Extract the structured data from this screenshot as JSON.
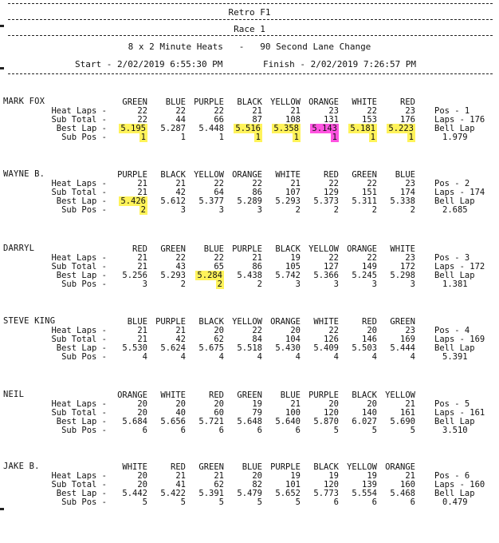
{
  "header": {
    "title": "Retro F1",
    "race": "Race 1",
    "format": "8 x 2 Minute Heats   -   90 Second Lane Change",
    "start": "Start - 2/02/2019 6:55:30 PM",
    "finish": "Finish - 2/02/2019 7:26:57 PM"
  },
  "row_labels": {
    "heat_laps": "Heat Laps -",
    "sub_total": "Sub Total -",
    "best_lap": "Best Lap -",
    "sub_pos": "Sub Pos -"
  },
  "highlight_colors": {
    "yellow": "#fff35a",
    "pink": "#ff53e0"
  },
  "drivers": [
    {
      "name": "MARK FOX",
      "lanes": [
        "GREEN",
        "BLUE",
        "PURPLE",
        "BLACK",
        "YELLOW",
        "ORANGE",
        "WHITE",
        "RED"
      ],
      "heat_laps": [
        "22",
        "22",
        "22",
        "21",
        "21",
        "23",
        "22",
        "23"
      ],
      "sub_total": [
        "22",
        "44",
        "66",
        "87",
        "108",
        "131",
        "153",
        "176"
      ],
      "best_lap": [
        "5.195",
        "5.287",
        "5.448",
        "5.516",
        "5.358",
        "5.143",
        "5.181",
        "5.223"
      ],
      "sub_pos": [
        "1",
        "1",
        "1",
        "1",
        "1",
        "1",
        "1",
        "1"
      ],
      "highlight": [
        "y",
        "",
        "",
        "y",
        "y",
        "p",
        "y",
        "y"
      ],
      "pos": "Pos - 1",
      "laps": "Laps - 176",
      "bell_lap_label": "Bell Lap",
      "bell_lap": "1.979"
    },
    {
      "name": "WAYNE B.",
      "lanes": [
        "PURPLE",
        "BLACK",
        "YELLOW",
        "ORANGE",
        "WHITE",
        "RED",
        "GREEN",
        "BLUE"
      ],
      "heat_laps": [
        "21",
        "21",
        "22",
        "22",
        "21",
        "22",
        "22",
        "23"
      ],
      "sub_total": [
        "21",
        "42",
        "64",
        "86",
        "107",
        "129",
        "151",
        "174"
      ],
      "best_lap": [
        "5.426",
        "5.612",
        "5.377",
        "5.289",
        "5.293",
        "5.373",
        "5.311",
        "5.338"
      ],
      "sub_pos": [
        "2",
        "3",
        "3",
        "3",
        "2",
        "2",
        "2",
        "2"
      ],
      "highlight": [
        "y",
        "",
        "",
        "",
        "",
        "",
        "",
        ""
      ],
      "pos": "Pos - 2",
      "laps": "Laps - 174",
      "bell_lap_label": "Bell Lap",
      "bell_lap": "2.685"
    },
    {
      "name": "DARRYL",
      "lanes": [
        "RED",
        "GREEN",
        "BLUE",
        "PURPLE",
        "BLACK",
        "YELLOW",
        "ORANGE",
        "WHITE"
      ],
      "heat_laps": [
        "21",
        "22",
        "22",
        "21",
        "19",
        "22",
        "22",
        "23"
      ],
      "sub_total": [
        "21",
        "43",
        "65",
        "86",
        "105",
        "127",
        "149",
        "172"
      ],
      "best_lap": [
        "5.256",
        "5.293",
        "5.284",
        "5.438",
        "5.742",
        "5.366",
        "5.245",
        "5.298"
      ],
      "sub_pos": [
        "3",
        "2",
        "2",
        "2",
        "3",
        "3",
        "3",
        "3"
      ],
      "highlight": [
        "",
        "",
        "y",
        "",
        "",
        "",
        "",
        ""
      ],
      "pos": "Pos - 3",
      "laps": "Laps - 172",
      "bell_lap_label": "Bell Lap",
      "bell_lap": "1.381"
    },
    {
      "name": "STEVE KING",
      "lanes": [
        "BLUE",
        "PURPLE",
        "BLACK",
        "YELLOW",
        "ORANGE",
        "WHITE",
        "RED",
        "GREEN"
      ],
      "heat_laps": [
        "21",
        "21",
        "20",
        "22",
        "20",
        "22",
        "20",
        "23"
      ],
      "sub_total": [
        "21",
        "42",
        "62",
        "84",
        "104",
        "126",
        "146",
        "169"
      ],
      "best_lap": [
        "5.530",
        "5.624",
        "5.675",
        "5.518",
        "5.430",
        "5.409",
        "5.503",
        "5.444"
      ],
      "sub_pos": [
        "4",
        "4",
        "4",
        "4",
        "4",
        "4",
        "4",
        "4"
      ],
      "highlight": [
        "",
        "",
        "",
        "",
        "",
        "",
        "",
        ""
      ],
      "pos": "Pos - 4",
      "laps": "Laps - 169",
      "bell_lap_label": "Bell Lap",
      "bell_lap": "5.391"
    },
    {
      "name": "NEIL",
      "lanes": [
        "ORANGE",
        "WHITE",
        "RED",
        "GREEN",
        "BLUE",
        "PURPLE",
        "BLACK",
        "YELLOW"
      ],
      "heat_laps": [
        "20",
        "20",
        "20",
        "19",
        "21",
        "20",
        "20",
        "21"
      ],
      "sub_total": [
        "20",
        "40",
        "60",
        "79",
        "100",
        "120",
        "140",
        "161"
      ],
      "best_lap": [
        "5.684",
        "5.656",
        "5.721",
        "5.648",
        "5.640",
        "5.870",
        "6.027",
        "5.690"
      ],
      "sub_pos": [
        "6",
        "6",
        "6",
        "6",
        "6",
        "5",
        "5",
        "5"
      ],
      "highlight": [
        "",
        "",
        "",
        "",
        "",
        "",
        "",
        ""
      ],
      "pos": "Pos - 5",
      "laps": "Laps - 161",
      "bell_lap_label": "Bell Lap",
      "bell_lap": "3.510"
    },
    {
      "name": "JAKE B.",
      "lanes": [
        "WHITE",
        "RED",
        "GREEN",
        "BLUE",
        "PURPLE",
        "BLACK",
        "YELLOW",
        "ORANGE"
      ],
      "heat_laps": [
        "20",
        "21",
        "21",
        "20",
        "19",
        "19",
        "19",
        "21"
      ],
      "sub_total": [
        "20",
        "41",
        "62",
        "82",
        "101",
        "120",
        "139",
        "160"
      ],
      "best_lap": [
        "5.442",
        "5.422",
        "5.391",
        "5.479",
        "5.652",
        "5.773",
        "5.554",
        "5.468"
      ],
      "sub_pos": [
        "5",
        "5",
        "5",
        "5",
        "5",
        "6",
        "6",
        "6"
      ],
      "highlight": [
        "",
        "",
        "",
        "",
        "",
        "",
        "",
        ""
      ],
      "pos": "Pos - 6",
      "laps": "Laps - 160",
      "bell_lap_label": "Bell Lap",
      "bell_lap": "0.479"
    }
  ]
}
